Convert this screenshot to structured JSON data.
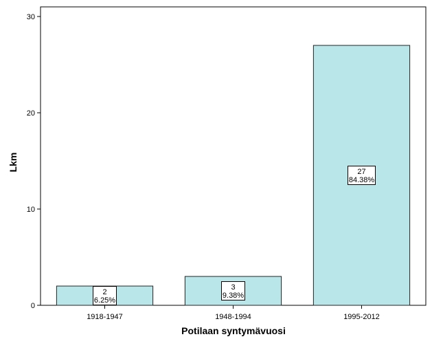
{
  "chart_data": {
    "type": "bar",
    "categories": [
      "1918-1947",
      "1948-1994",
      "1995-2012"
    ],
    "values": [
      2,
      3,
      27
    ],
    "percent_labels": [
      "6.25%",
      "9.38%",
      "84.38%"
    ],
    "xlabel": "Potilaan syntymävuosi",
    "ylabel": "Lkm",
    "ylim": [
      0,
      31
    ],
    "yticks": [
      0,
      10,
      20,
      30
    ],
    "grid": false,
    "bar_color": "#b9e6e8",
    "bar_edge_color": "#222222"
  }
}
